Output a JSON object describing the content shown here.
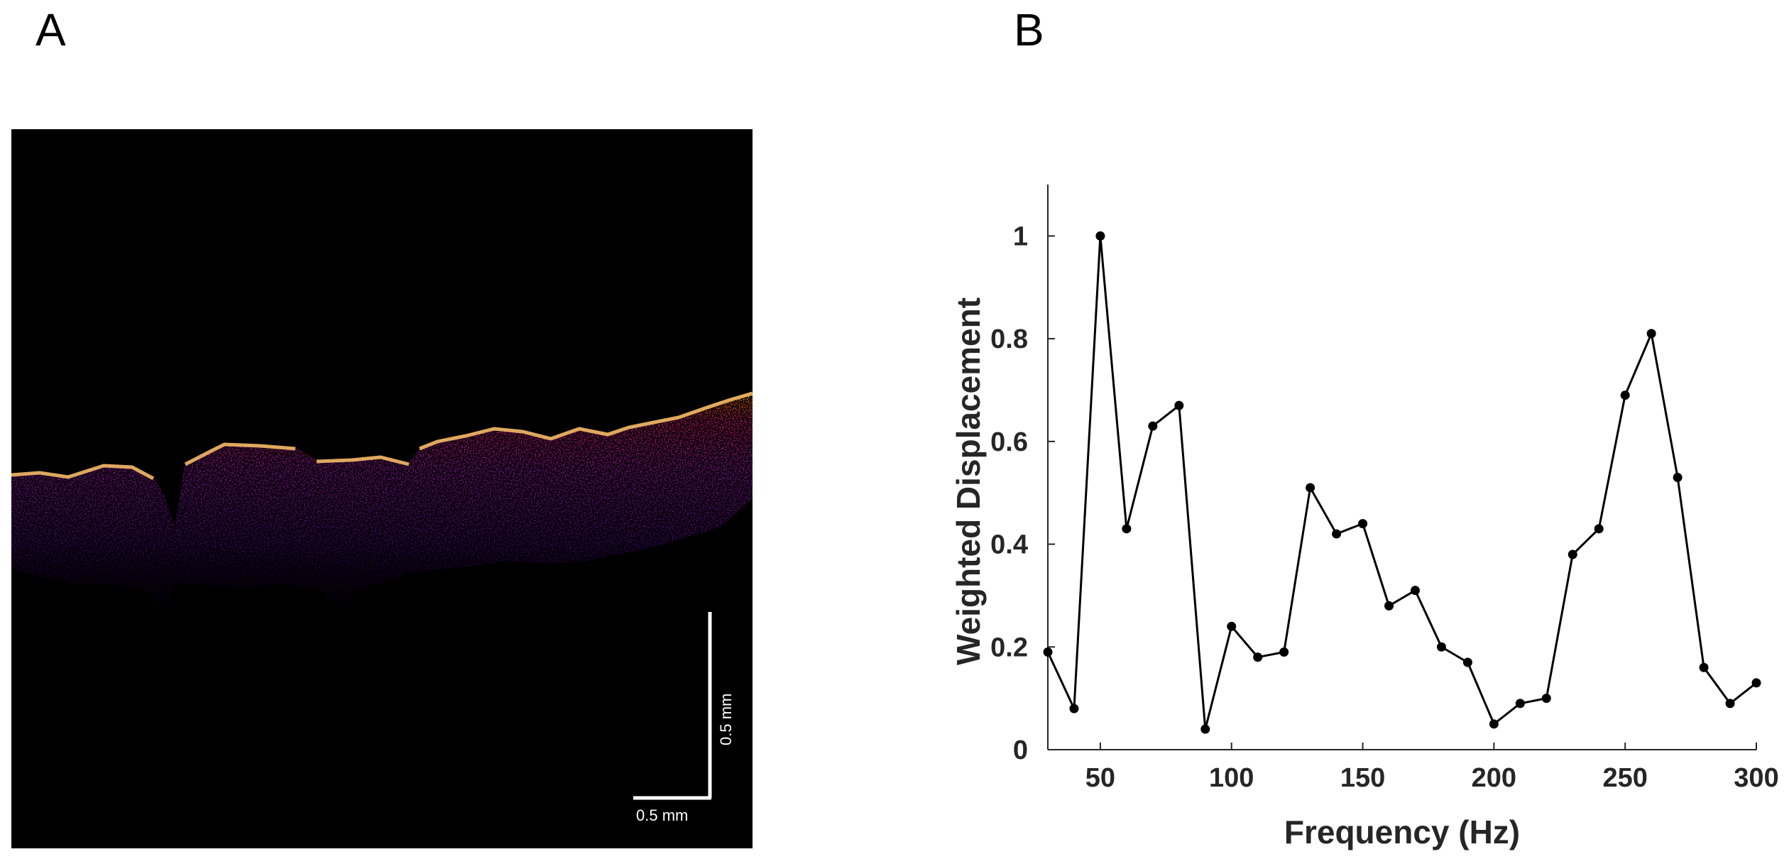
{
  "panels": {
    "a_label": "A",
    "b_label": "B"
  },
  "image_panel": {
    "scale_bar_vertical_label": "0.5 mm",
    "scale_bar_horizontal_label": "0.5 mm"
  },
  "chart_data": {
    "type": "line",
    "title": "",
    "xlabel": "Frequency (Hz)",
    "ylabel": "Weighted Displacement",
    "xlim": [
      30,
      300
    ],
    "ylim": [
      0,
      1.1
    ],
    "x_ticks": [
      50,
      100,
      150,
      200,
      250,
      300
    ],
    "y_ticks": [
      0,
      0.2,
      0.4,
      0.6,
      0.8,
      1
    ],
    "grid": false,
    "marker": "circle",
    "line_color": "#000000",
    "series": [
      {
        "x": [
          30,
          40,
          50,
          60,
          70,
          80,
          90,
          100,
          110,
          120,
          130,
          140,
          150,
          160,
          170,
          180,
          190,
          200,
          210,
          220,
          230,
          240,
          250,
          260,
          270,
          280,
          290,
          300
        ],
        "y": [
          0.19,
          0.08,
          1.0,
          0.43,
          0.63,
          0.67,
          0.04,
          0.24,
          0.18,
          0.19,
          0.51,
          0.42,
          0.44,
          0.28,
          0.31,
          0.2,
          0.17,
          0.05,
          0.09,
          0.1,
          0.38,
          0.43,
          0.69,
          0.81,
          0.53,
          0.16,
          0.09,
          0.13
        ]
      }
    ]
  }
}
